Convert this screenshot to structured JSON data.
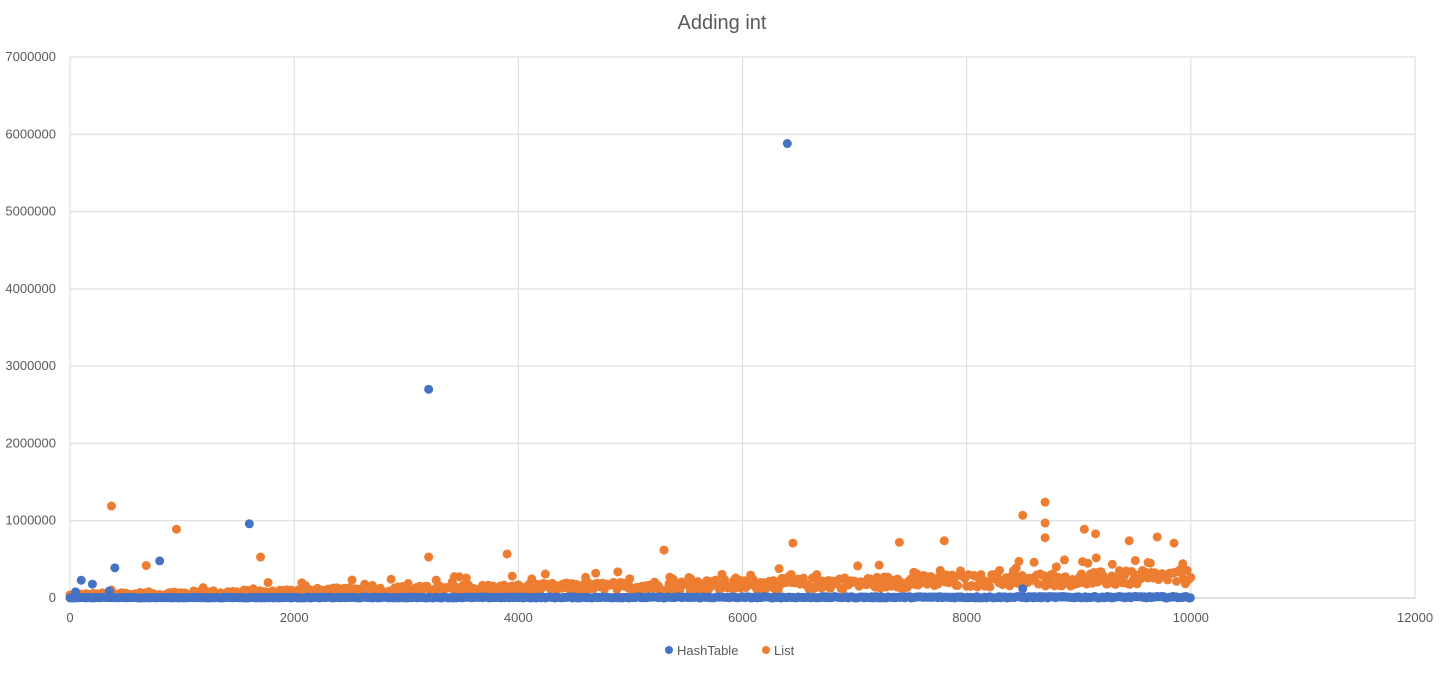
{
  "chart_data": {
    "type": "scatter",
    "title": "Adding int",
    "xlabel": "",
    "ylabel": "",
    "xlim": [
      0,
      12000
    ],
    "ylim": [
      0,
      7000000
    ],
    "x_ticks": [
      0,
      2000,
      4000,
      6000,
      8000,
      10000,
      12000
    ],
    "y_ticks": [
      0,
      1000000,
      2000000,
      3000000,
      4000000,
      5000000,
      6000000,
      7000000
    ],
    "grid": true,
    "legend_position": "bottom",
    "series": [
      {
        "name": "HashTable",
        "color": "#4472C4",
        "description": "approximately 10000 points near y≈0 to 30000 across x=0..10000 (dense band), plus outliers",
        "outliers": [
          {
            "x": 50,
            "y": 80000
          },
          {
            "x": 100,
            "y": 230000
          },
          {
            "x": 200,
            "y": 180000
          },
          {
            "x": 350,
            "y": 90000
          },
          {
            "x": 400,
            "y": 390000
          },
          {
            "x": 800,
            "y": 480000
          },
          {
            "x": 1600,
            "y": 960000
          },
          {
            "x": 3200,
            "y": 2700000
          },
          {
            "x": 6400,
            "y": 5880000
          },
          {
            "x": 8500,
            "y": 120000
          }
        ]
      },
      {
        "name": "List",
        "color": "#ED7D31",
        "description": "approximately 10000 points with a band rising from ~20000 at x=0 to ~300000 at x=10000, plus scattered spikes",
        "outliers": [
          {
            "x": 370,
            "y": 1190000
          },
          {
            "x": 950,
            "y": 890000
          },
          {
            "x": 680,
            "y": 420000
          },
          {
            "x": 1700,
            "y": 530000
          },
          {
            "x": 3200,
            "y": 530000
          },
          {
            "x": 3900,
            "y": 570000
          },
          {
            "x": 5300,
            "y": 620000
          },
          {
            "x": 6450,
            "y": 710000
          },
          {
            "x": 7400,
            "y": 720000
          },
          {
            "x": 7800,
            "y": 740000
          },
          {
            "x": 8500,
            "y": 1070000
          },
          {
            "x": 8700,
            "y": 1240000
          },
          {
            "x": 8700,
            "y": 970000
          },
          {
            "x": 8700,
            "y": 780000
          },
          {
            "x": 9050,
            "y": 890000
          },
          {
            "x": 9150,
            "y": 830000
          },
          {
            "x": 9450,
            "y": 740000
          },
          {
            "x": 9700,
            "y": 790000
          },
          {
            "x": 9850,
            "y": 710000
          }
        ]
      }
    ]
  }
}
